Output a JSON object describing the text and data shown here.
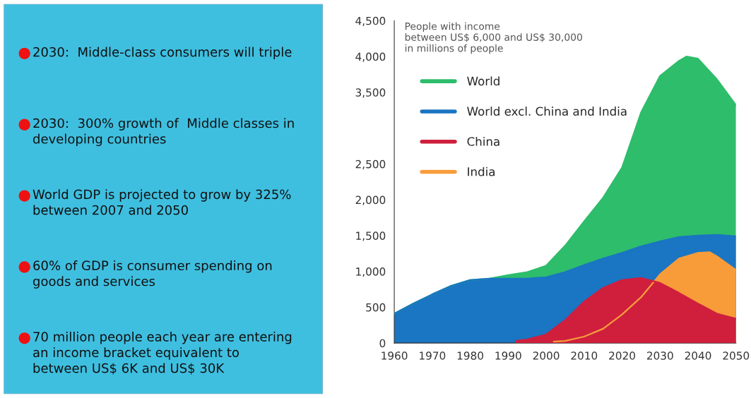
{
  "chart_data": [
    {
      "type": "other",
      "annotations": [
        "2030:  Middle-class consumers will triple",
        "2030:  300% growth of  Middle classes in developing countries",
        "World GDP is projected to grow by 325% between 2007 and 2050",
        "60% of GDP is consumer spending on goods and services",
        "70 million people each year are entering an income bracket equivalent to between US$ 6K and US$ 30K"
      ]
    },
    {
      "type": "area",
      "title": "People with income\nbetween US$ 6,000 and US$ 30,000\nin millions of people",
      "series": [
        {
          "name": "World",
          "color": "#2ebd6b",
          "x": [
            1960,
            1965,
            1970,
            1975,
            1980,
            1985,
            1990,
            1995,
            2000,
            2005,
            2010,
            2015,
            2020,
            2025,
            2030,
            2035,
            2037,
            2040,
            2045,
            2050
          ],
          "values": [
            410,
            550,
            680,
            800,
            880,
            900,
            950,
            990,
            1080,
            1360,
            1700,
            2030,
            2450,
            3220,
            3730,
            3940,
            4000,
            3970,
            3680,
            3320
          ]
        },
        {
          "name": "World excl. China and India",
          "color": "#1a75c2",
          "x": [
            1960,
            1965,
            1970,
            1975,
            1980,
            1985,
            1990,
            1995,
            2000,
            2005,
            2010,
            2015,
            2020,
            2025,
            2030,
            2035,
            2040,
            2045,
            2050
          ],
          "values": [
            410,
            550,
            680,
            800,
            880,
            900,
            900,
            900,
            920,
            990,
            1090,
            1180,
            1260,
            1350,
            1420,
            1480,
            1500,
            1510,
            1490
          ]
        },
        {
          "name": "China",
          "color": "#cf1f3d",
          "x": [
            1992,
            1995,
            2000,
            2005,
            2010,
            2015,
            2020,
            2025,
            2030,
            2035,
            2040,
            2045,
            2050
          ],
          "values": [
            30,
            50,
            120,
            320,
            580,
            770,
            880,
            910,
            840,
            700,
            550,
            410,
            340
          ]
        },
        {
          "name": "India",
          "color": "#f89c3a",
          "x": [
            2002,
            2005,
            2010,
            2015,
            2020,
            2025,
            2030,
            2035,
            2040,
            2043,
            2045,
            2050
          ],
          "values": [
            20,
            30,
            90,
            200,
            400,
            640,
            960,
            1180,
            1260,
            1270,
            1210,
            1020
          ]
        }
      ],
      "xlim": [
        1960,
        2050
      ],
      "xticks": [
        1960,
        1970,
        1980,
        1990,
        2000,
        2010,
        2020,
        2030,
        2040,
        2050
      ],
      "ylim": [
        0,
        4500
      ],
      "yticks": [
        {
          "value": 0,
          "label": "0"
        },
        {
          "value": 500,
          "label": "500"
        },
        {
          "value": 1000,
          "label": "1,000"
        },
        {
          "value": 1500,
          "label": "1,500"
        },
        {
          "value": 2000,
          "label": "2,000"
        },
        {
          "value": 2500,
          "label": "2,500"
        },
        {
          "value": 3500,
          "label": "3,500"
        },
        {
          "value": 4000,
          "label": "4,000"
        },
        {
          "value": 4500,
          "label": "4,500"
        }
      ],
      "legend": "top left",
      "grid": false
    }
  ]
}
